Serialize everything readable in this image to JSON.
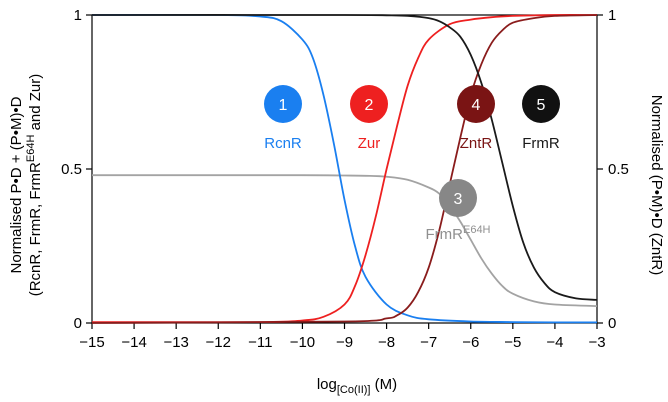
{
  "chart_data": {
    "type": "line",
    "xlim": [
      -15,
      -3
    ],
    "ylim": [
      0,
      1
    ],
    "x_ticks": [
      "−15",
      "−14",
      "−13",
      "−12",
      "−11",
      "−10",
      "−9",
      "−8",
      "−7",
      "−6",
      "−5",
      "−4",
      "−3"
    ],
    "y_left_ticks": [
      "0",
      "0.5",
      "1"
    ],
    "y_right_ticks": [
      "0",
      "0.5",
      "1"
    ],
    "xlabel": {
      "base": "log",
      "sub": "[Co(II)]",
      "unit": " (M)"
    },
    "ylabel_left": {
      "line1": "Normalised P•D + (P•M)•D",
      "line2_pre": "(RcnR, FrmR, FrmR",
      "line2_sup": "E64H",
      "line2_post": " and Zur)"
    },
    "ylabel_right": "Normalised (P•M)•D (ZntR)",
    "grid": false,
    "series": [
      {
        "name": "RcnR",
        "number": "1",
        "color": "#1a7ff0",
        "label_color": "#1a7ff0",
        "x": [
          -15,
          -12,
          -11,
          -10.5,
          -10,
          -9.75,
          -9.5,
          -9.25,
          -9,
          -8.75,
          -8.5,
          -8,
          -7.5,
          -7,
          -6,
          -5,
          -4,
          -3
        ],
        "y": [
          1.0,
          1.0,
          0.995,
          0.98,
          0.92,
          0.86,
          0.74,
          0.58,
          0.4,
          0.25,
          0.15,
          0.06,
          0.025,
          0.012,
          0.005,
          0.003,
          0.002,
          0.002
        ]
      },
      {
        "name": "Zur",
        "number": "2",
        "color": "#ee2020",
        "label_color": "#ee2020",
        "x": [
          -15,
          -11,
          -10,
          -9.5,
          -9,
          -8.75,
          -8.5,
          -8.25,
          -8,
          -7.75,
          -7.5,
          -7.25,
          -7,
          -6.5,
          -6,
          -5.5,
          -5,
          -4,
          -3
        ],
        "y": [
          0.003,
          0.003,
          0.008,
          0.02,
          0.06,
          0.12,
          0.22,
          0.35,
          0.5,
          0.64,
          0.77,
          0.86,
          0.92,
          0.97,
          0.985,
          0.993,
          0.997,
          1.0,
          1.0
        ]
      },
      {
        "name": "FrmR",
        "name_sup": "E64H",
        "number": "3",
        "color": "#a3a3a3",
        "label_color": "#909090",
        "circle_color": "#878787",
        "x": [
          -15,
          -12,
          -10,
          -9,
          -8.5,
          -8,
          -7.5,
          -7,
          -6.75,
          -6.5,
          -6.25,
          -6,
          -5.75,
          -5.5,
          -5.25,
          -5,
          -4.5,
          -4,
          -3
        ],
        "y": [
          0.48,
          0.48,
          0.48,
          0.479,
          0.478,
          0.475,
          0.465,
          0.44,
          0.42,
          0.38,
          0.33,
          0.27,
          0.21,
          0.16,
          0.12,
          0.095,
          0.07,
          0.06,
          0.055
        ]
      },
      {
        "name": "ZntR",
        "number": "4",
        "color": "#8a1c1c",
        "label_color": "#7a1414",
        "circle_color": "#7a1414",
        "x": [
          -15,
          -9,
          -8,
          -7.75,
          -7.5,
          -7.25,
          -7,
          -6.75,
          -6.5,
          -6.25,
          -6,
          -5.75,
          -5.5,
          -5.25,
          -5,
          -4.5,
          -4,
          -3
        ],
        "y": [
          0.0,
          0.005,
          0.015,
          0.025,
          0.05,
          0.1,
          0.18,
          0.3,
          0.45,
          0.6,
          0.74,
          0.84,
          0.91,
          0.95,
          0.975,
          0.99,
          0.997,
          1.0
        ]
      },
      {
        "name": "FrmR",
        "number": "5",
        "color": "#1a1a1a",
        "label_color": "#1a1a1a",
        "circle_color": "#111111",
        "x": [
          -15,
          -9,
          -8,
          -7.5,
          -7,
          -6.75,
          -6.5,
          -6.25,
          -6,
          -5.75,
          -5.5,
          -5.25,
          -5,
          -4.75,
          -4.5,
          -4.25,
          -4,
          -3.5,
          -3
        ],
        "y": [
          1.0,
          1.0,
          0.999,
          0.997,
          0.99,
          0.98,
          0.96,
          0.93,
          0.87,
          0.78,
          0.66,
          0.52,
          0.38,
          0.26,
          0.18,
          0.13,
          0.1,
          0.08,
          0.075
        ]
      }
    ]
  }
}
